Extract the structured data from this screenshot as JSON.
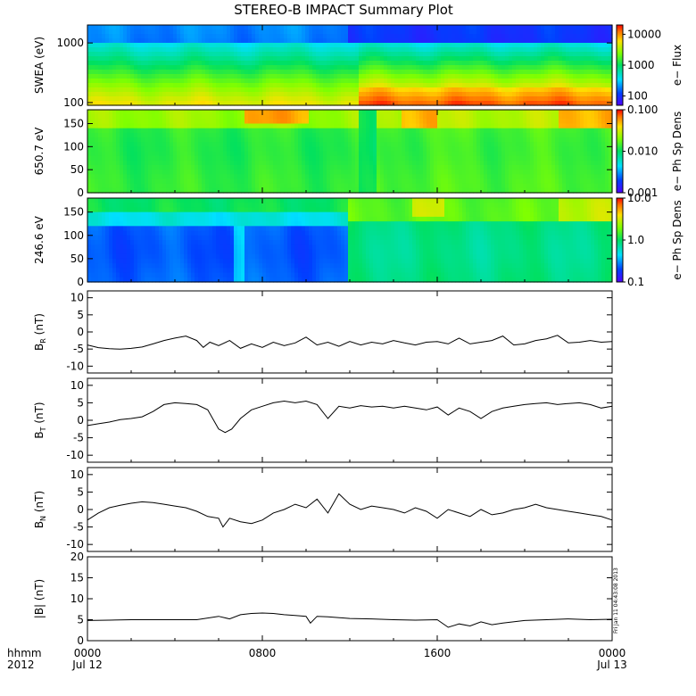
{
  "chart_data": [
    {
      "type": "heatmap",
      "title": "STEREO-B IMPACT Summary Plot",
      "ylabel": "SWEA (eV)",
      "yscale": "log",
      "ylim": [
        90,
        2000
      ],
      "yticks": [
        {
          "v": 1000,
          "t": "1000"
        },
        {
          "v": 100,
          "t": "100"
        }
      ],
      "colorbar_label": "e− Flux",
      "colorbar_scale": "log",
      "colorbar_range": [
        50,
        20000
      ],
      "colorbar_ticks": [
        {
          "v": 10000,
          "t": "10000"
        },
        {
          "v": 1000,
          "t": "1000"
        },
        {
          "v": 100,
          "t": "100"
        }
      ]
    },
    {
      "type": "heatmap",
      "ylabel": "650.7 eV",
      "ylim": [
        0,
        180
      ],
      "yticks": [
        {
          "v": 150,
          "t": "150"
        },
        {
          "v": 100,
          "t": "100"
        },
        {
          "v": 50,
          "t": "50"
        },
        {
          "v": 0,
          "t": "0"
        }
      ],
      "colorbar_label": "e− Ph Sp Dens",
      "colorbar_scale": "log",
      "colorbar_range": [
        0.001,
        0.1
      ],
      "colorbar_ticks": [
        {
          "v": 0.1,
          "t": "0.100"
        },
        {
          "v": 0.01,
          "t": "0.010"
        },
        {
          "v": 0.001,
          "t": "0.001"
        }
      ]
    },
    {
      "type": "heatmap",
      "ylabel": "246.6 eV",
      "ylim": [
        0,
        180
      ],
      "yticks": [
        {
          "v": 150,
          "t": "150"
        },
        {
          "v": 100,
          "t": "100"
        },
        {
          "v": 50,
          "t": "50"
        },
        {
          "v": 0,
          "t": "0"
        }
      ],
      "colorbar_label": "e− Ph Sp Dens",
      "colorbar_scale": "log",
      "colorbar_range": [
        0.1,
        10
      ],
      "colorbar_ticks": [
        {
          "v": 10,
          "t": "10.0"
        },
        {
          "v": 1,
          "t": "1.0"
        },
        {
          "v": 0.1,
          "t": "0.1"
        }
      ]
    },
    {
      "type": "line",
      "ylabel": "B_R (nT)",
      "ylim": [
        -12,
        12
      ],
      "yticks": [
        10,
        5,
        0,
        -5,
        -10
      ],
      "x_hours": [
        0,
        0.5,
        1,
        1.5,
        2,
        2.5,
        3,
        3.5,
        4,
        4.5,
        5,
        5.3,
        5.6,
        6,
        6.5,
        7,
        7.5,
        8,
        8.5,
        9,
        9.5,
        10,
        10.5,
        11,
        11.5,
        12,
        12.5,
        13,
        13.5,
        14,
        14.5,
        15,
        15.5,
        16,
        16.5,
        17,
        17.5,
        18,
        18.5,
        19,
        19.5,
        20,
        20.5,
        21,
        21.5,
        22,
        22.5,
        23,
        23.5,
        24
      ],
      "values": [
        -3.8,
        -4.6,
        -4.9,
        -5.0,
        -4.8,
        -4.4,
        -3.5,
        -2.5,
        -1.8,
        -1.2,
        -2.5,
        -4.5,
        -3.0,
        -4.0,
        -2.5,
        -4.8,
        -3.5,
        -4.5,
        -3.0,
        -4.0,
        -3.2,
        -1.5,
        -3.8,
        -3.0,
        -4.2,
        -2.8,
        -3.8,
        -3.0,
        -3.5,
        -2.5,
        -3.2,
        -3.8,
        -3.0,
        -2.8,
        -3.5,
        -1.8,
        -3.5,
        -3.0,
        -2.5,
        -1.2,
        -3.8,
        -3.5,
        -2.5,
        -2.0,
        -1.0,
        -3.2,
        -3.0,
        -2.5,
        -3.0,
        -2.8
      ]
    },
    {
      "type": "line",
      "ylabel": "B_T (nT)",
      "ylim": [
        -12,
        12
      ],
      "yticks": [
        10,
        5,
        0,
        -5,
        -10
      ],
      "x_hours": [
        0,
        0.5,
        1,
        1.5,
        2,
        2.5,
        3,
        3.5,
        4,
        4.5,
        5,
        5.5,
        6,
        6.3,
        6.6,
        7,
        7.5,
        8,
        8.5,
        9,
        9.5,
        10,
        10.5,
        11,
        11.5,
        12,
        12.5,
        13,
        13.5,
        14,
        14.5,
        15,
        15.5,
        16,
        16.5,
        17,
        17.5,
        18,
        18.5,
        19,
        19.5,
        20,
        20.5,
        21,
        21.5,
        22,
        22.5,
        23,
        23.5,
        24
      ],
      "values": [
        -1.5,
        -1.0,
        -0.5,
        0.2,
        0.5,
        1.0,
        2.5,
        4.5,
        5.0,
        4.8,
        4.5,
        3.0,
        -2.5,
        -3.5,
        -2.5,
        0.5,
        3.0,
        4.0,
        5.0,
        5.5,
        5.0,
        5.5,
        4.5,
        0.5,
        4.0,
        3.5,
        4.2,
        3.8,
        4.0,
        3.5,
        4.0,
        3.5,
        3.0,
        3.8,
        1.5,
        3.5,
        2.5,
        0.5,
        2.5,
        3.5,
        4.0,
        4.5,
        4.8,
        5.0,
        4.5,
        4.8,
        5.0,
        4.5,
        3.5,
        4.0
      ]
    },
    {
      "type": "line",
      "ylabel": "B_N (nT)",
      "ylim": [
        -12,
        12
      ],
      "yticks": [
        10,
        5,
        0,
        -5,
        -10
      ],
      "x_hours": [
        0,
        0.5,
        1,
        1.5,
        2,
        2.5,
        3,
        3.5,
        4,
        4.5,
        5,
        5.5,
        6,
        6.2,
        6.5,
        7,
        7.5,
        8,
        8.5,
        9,
        9.5,
        10,
        10.5,
        11,
        11.5,
        12,
        12.5,
        13,
        13.5,
        14,
        14.5,
        15,
        15.5,
        16,
        16.5,
        17,
        17.5,
        18,
        18.5,
        19,
        19.5,
        20,
        20.5,
        21,
        21.5,
        22,
        22.5,
        23,
        23.5,
        24
      ],
      "values": [
        -3.0,
        -1.0,
        0.5,
        1.2,
        1.8,
        2.2,
        2.0,
        1.5,
        1.0,
        0.5,
        -0.5,
        -2.0,
        -2.5,
        -5.0,
        -2.5,
        -3.5,
        -4.0,
        -3.0,
        -1.0,
        0.0,
        1.5,
        0.5,
        3.0,
        -1.0,
        4.5,
        1.5,
        0.0,
        1.0,
        0.5,
        0.0,
        -1.0,
        0.5,
        -0.5,
        -2.5,
        0.0,
        -1.0,
        -2.0,
        0.0,
        -1.5,
        -1.0,
        0.0,
        0.5,
        1.5,
        0.5,
        0.0,
        -0.5,
        -1.0,
        -1.5,
        -2.0,
        -3.0
      ]
    },
    {
      "type": "line",
      "ylabel": "|B| (nT)",
      "ylim": [
        0,
        20
      ],
      "yticks": [
        20,
        15,
        10,
        5,
        0
      ],
      "x_hours": [
        0,
        1,
        2,
        3,
        4,
        5,
        6,
        6.5,
        7,
        7.5,
        8,
        8.5,
        9,
        9.5,
        10,
        10.2,
        10.5,
        11,
        12,
        13,
        14,
        15,
        16,
        16.5,
        17,
        17.5,
        18,
        18.5,
        19,
        20,
        21,
        22,
        23,
        24
      ],
      "values": [
        4.8,
        4.9,
        5.0,
        5.0,
        5.0,
        5.0,
        5.8,
        5.2,
        6.2,
        6.5,
        6.6,
        6.5,
        6.2,
        6.0,
        5.8,
        4.2,
        5.8,
        5.7,
        5.3,
        5.2,
        5.0,
        4.9,
        5.0,
        3.2,
        4.0,
        3.5,
        4.5,
        3.8,
        4.2,
        4.8,
        5.0,
        5.2,
        5.0,
        5.1
      ]
    }
  ],
  "x_axis": {
    "range_hours": [
      0,
      24
    ],
    "row1_label": "hhmm",
    "row2_label": "2012",
    "ticks": [
      {
        "hour": 0,
        "time": "0000",
        "date": "Jul 12"
      },
      {
        "hour": 8,
        "time": "0800",
        "date": ""
      },
      {
        "hour": 16,
        "time": "1600",
        "date": ""
      },
      {
        "hour": 24,
        "time": "0000",
        "date": "Jul 13"
      }
    ]
  },
  "footer_stamp": "Fri Jan 11 04:43:08 2013"
}
